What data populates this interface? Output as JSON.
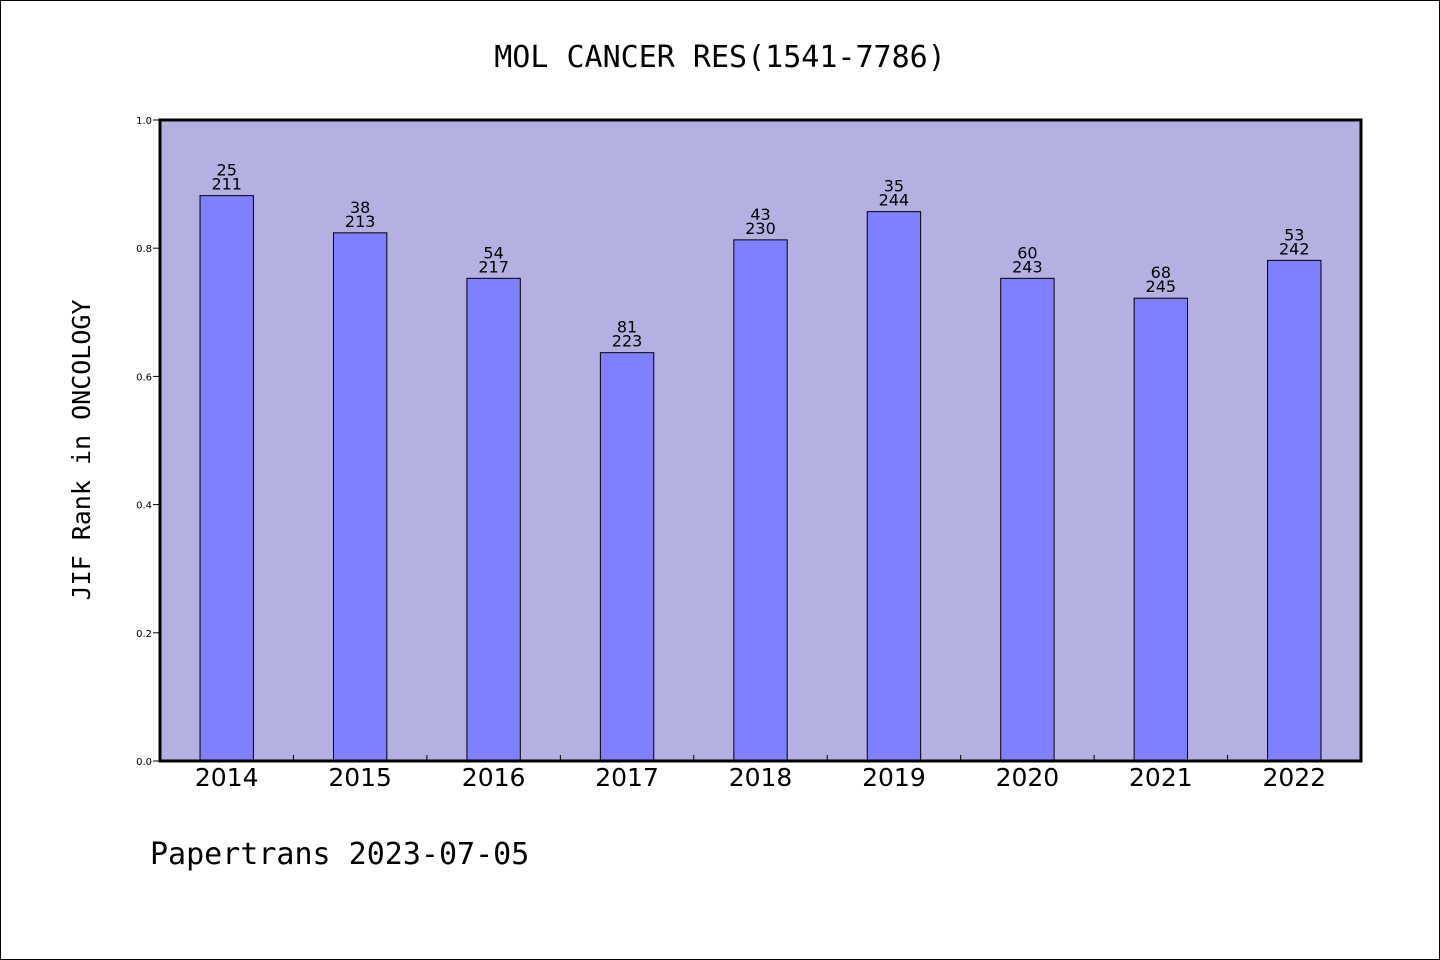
{
  "chart_data": {
    "type": "bar",
    "title": "MOL CANCER RES(1541-7786)",
    "xlabel": "",
    "ylabel": "JIF Rank in ONCOLOGY",
    "footer": "Papertrans 2023-07-05",
    "categories": [
      "2014",
      "2015",
      "2016",
      "2017",
      "2018",
      "2019",
      "2020",
      "2021",
      "2022"
    ],
    "values": [
      0.882,
      0.824,
      0.753,
      0.637,
      0.813,
      0.857,
      0.753,
      0.722,
      0.781
    ],
    "rank": [
      "25",
      "38",
      "54",
      "81",
      "43",
      "35",
      "60",
      "68",
      "53"
    ],
    "total": [
      "211",
      "213",
      "217",
      "223",
      "230",
      "244",
      "243",
      "245",
      "242"
    ],
    "ylim": [
      0,
      1.0
    ],
    "yticks": [
      "0.0",
      "0.2",
      "0.4",
      "0.6",
      "0.8",
      "1.0"
    ],
    "grid": false,
    "colors": {
      "plot_background": "#b5b0e2",
      "bar_fill": "#8080ff",
      "bar_stroke": "#000000"
    }
  }
}
